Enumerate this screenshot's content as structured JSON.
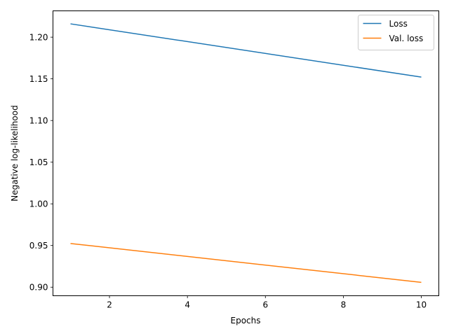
{
  "chart_data": {
    "type": "line",
    "title": "",
    "xlabel": "Epochs",
    "ylabel": "Negative log-likelihood",
    "xlim": [
      0.55,
      10.45
    ],
    "ylim": [
      0.8897,
      1.2316
    ],
    "xticks": [
      2,
      4,
      6,
      8,
      10
    ],
    "yticks": [
      0.9,
      0.95,
      1.0,
      1.05,
      1.1,
      1.15,
      1.2
    ],
    "xtick_labels": [
      "2",
      "4",
      "6",
      "8",
      "10"
    ],
    "ytick_labels": [
      "0.90",
      "0.95",
      "1.00",
      "1.05",
      "1.10",
      "1.15",
      "1.20"
    ],
    "grid": false,
    "legend_position": "top-right",
    "series": [
      {
        "name": "Loss",
        "color": "#1f77b4",
        "x": [
          1,
          10
        ],
        "y": [
          1.216,
          1.1521
        ]
      },
      {
        "name": "Val. loss",
        "color": "#ff7f0e",
        "x": [
          1,
          10
        ],
        "y": [
          0.9524,
          0.9058
        ]
      }
    ]
  }
}
